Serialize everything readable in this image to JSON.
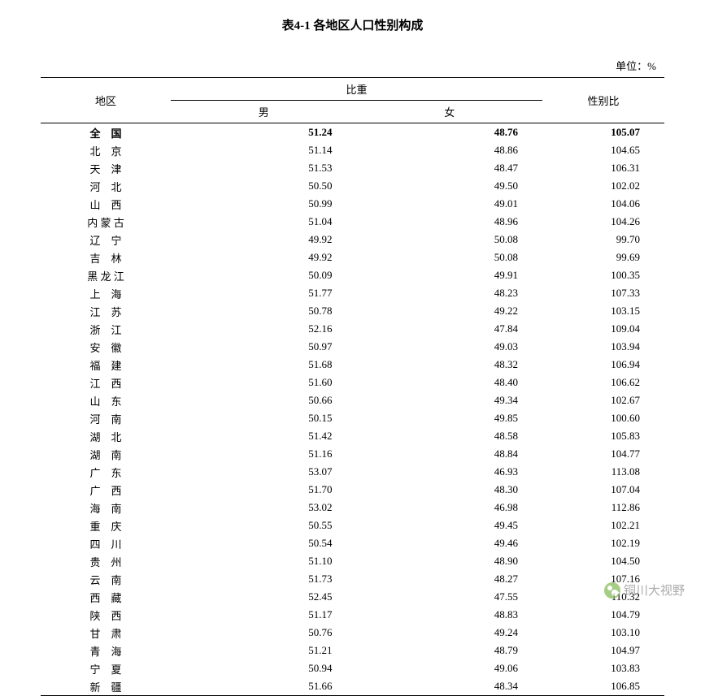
{
  "title": "表4-1 各地区人口性别构成",
  "unit_label": "单位：%",
  "columns": {
    "region": "地区",
    "ratio_group": "比重",
    "male": "男",
    "female": "女",
    "gender_ratio": "性别比"
  },
  "watermark_text": "铜川大视野",
  "rows": [
    {
      "region": "全　国",
      "male": "51.24",
      "female": "48.76",
      "ratio": "105.07",
      "bold": true
    },
    {
      "region": "北　京",
      "male": "51.14",
      "female": "48.86",
      "ratio": "104.65",
      "bold": false
    },
    {
      "region": "天　津",
      "male": "51.53",
      "female": "48.47",
      "ratio": "106.31",
      "bold": false
    },
    {
      "region": "河　北",
      "male": "50.50",
      "female": "49.50",
      "ratio": "102.02",
      "bold": false
    },
    {
      "region": "山　西",
      "male": "50.99",
      "female": "49.01",
      "ratio": "104.06",
      "bold": false
    },
    {
      "region": "内 蒙 古",
      "male": "51.04",
      "female": "48.96",
      "ratio": "104.26",
      "bold": false
    },
    {
      "region": "辽　宁",
      "male": "49.92",
      "female": "50.08",
      "ratio": "99.70",
      "bold": false
    },
    {
      "region": "吉　林",
      "male": "49.92",
      "female": "50.08",
      "ratio": "99.69",
      "bold": false
    },
    {
      "region": "黑 龙 江",
      "male": "50.09",
      "female": "49.91",
      "ratio": "100.35",
      "bold": false
    },
    {
      "region": "上　海",
      "male": "51.77",
      "female": "48.23",
      "ratio": "107.33",
      "bold": false
    },
    {
      "region": "江　苏",
      "male": "50.78",
      "female": "49.22",
      "ratio": "103.15",
      "bold": false
    },
    {
      "region": "浙　江",
      "male": "52.16",
      "female": "47.84",
      "ratio": "109.04",
      "bold": false
    },
    {
      "region": "安　徽",
      "male": "50.97",
      "female": "49.03",
      "ratio": "103.94",
      "bold": false
    },
    {
      "region": "福　建",
      "male": "51.68",
      "female": "48.32",
      "ratio": "106.94",
      "bold": false
    },
    {
      "region": "江　西",
      "male": "51.60",
      "female": "48.40",
      "ratio": "106.62",
      "bold": false
    },
    {
      "region": "山　东",
      "male": "50.66",
      "female": "49.34",
      "ratio": "102.67",
      "bold": false
    },
    {
      "region": "河　南",
      "male": "50.15",
      "female": "49.85",
      "ratio": "100.60",
      "bold": false
    },
    {
      "region": "湖　北",
      "male": "51.42",
      "female": "48.58",
      "ratio": "105.83",
      "bold": false
    },
    {
      "region": "湖　南",
      "male": "51.16",
      "female": "48.84",
      "ratio": "104.77",
      "bold": false
    },
    {
      "region": "广　东",
      "male": "53.07",
      "female": "46.93",
      "ratio": "113.08",
      "bold": false
    },
    {
      "region": "广　西",
      "male": "51.70",
      "female": "48.30",
      "ratio": "107.04",
      "bold": false
    },
    {
      "region": "海　南",
      "male": "53.02",
      "female": "46.98",
      "ratio": "112.86",
      "bold": false
    },
    {
      "region": "重　庆",
      "male": "50.55",
      "female": "49.45",
      "ratio": "102.21",
      "bold": false
    },
    {
      "region": "四　川",
      "male": "50.54",
      "female": "49.46",
      "ratio": "102.19",
      "bold": false
    },
    {
      "region": "贵　州",
      "male": "51.10",
      "female": "48.90",
      "ratio": "104.50",
      "bold": false
    },
    {
      "region": "云　南",
      "male": "51.73",
      "female": "48.27",
      "ratio": "107.16",
      "bold": false
    },
    {
      "region": "西　藏",
      "male": "52.45",
      "female": "47.55",
      "ratio": "110.32",
      "bold": false
    },
    {
      "region": "陕　西",
      "male": "51.17",
      "female": "48.83",
      "ratio": "104.79",
      "bold": false
    },
    {
      "region": "甘　肃",
      "male": "50.76",
      "female": "49.24",
      "ratio": "103.10",
      "bold": false
    },
    {
      "region": "青　海",
      "male": "51.21",
      "female": "48.79",
      "ratio": "104.97",
      "bold": false
    },
    {
      "region": "宁　夏",
      "male": "50.94",
      "female": "49.06",
      "ratio": "103.83",
      "bold": false
    },
    {
      "region": "新　疆",
      "male": "51.66",
      "female": "48.34",
      "ratio": "106.85",
      "bold": false
    }
  ],
  "styling": {
    "background_color": "#ffffff",
    "text_color": "#000000",
    "border_color": "#000000",
    "font_family": "SimSun",
    "title_fontsize": 15,
    "body_fontsize": 13,
    "watermark_color": "#888888"
  }
}
